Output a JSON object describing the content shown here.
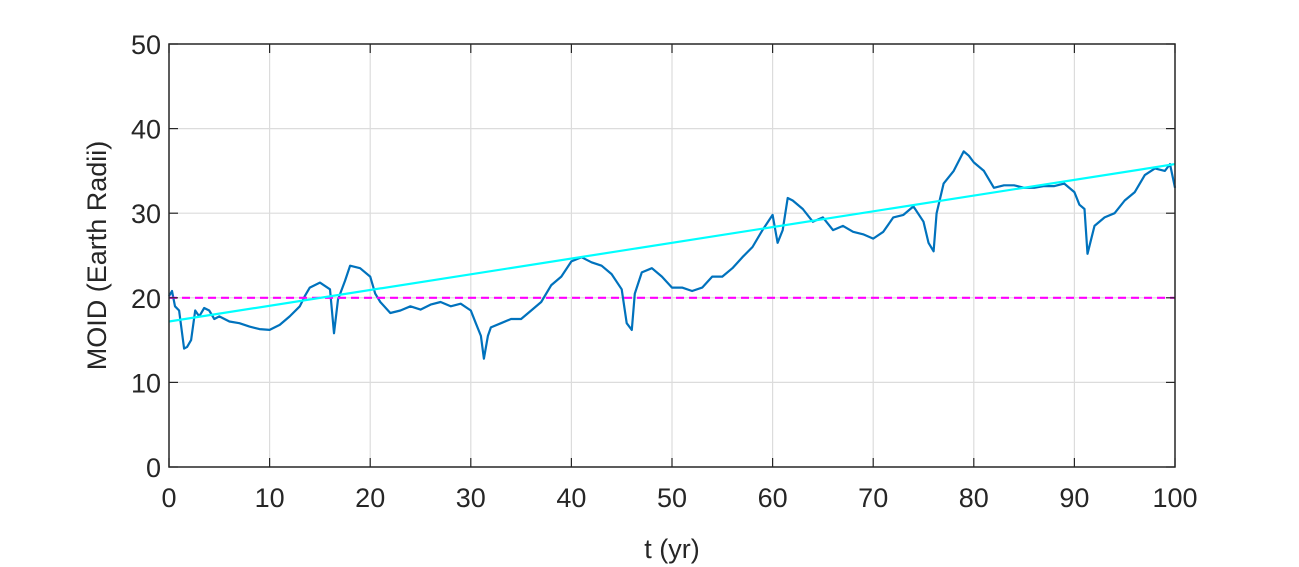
{
  "chart_data": {
    "type": "line",
    "title": "",
    "xlabel": "t (yr)",
    "ylabel": "MOID (Earth Radii)",
    "xlim": [
      0,
      100
    ],
    "ylim": [
      0,
      50
    ],
    "xticks": [
      0,
      10,
      20,
      30,
      40,
      50,
      60,
      70,
      80,
      90,
      100
    ],
    "yticks": [
      0,
      10,
      20,
      30,
      40,
      50
    ],
    "grid": true,
    "legend": "none",
    "colors": {
      "moid": "#0072BD",
      "trend": "#00FFFF",
      "threshold": "#FF00FF",
      "grid": "#DCDCDC",
      "axis": "#262626"
    },
    "series": [
      {
        "style": "solid",
        "x": [
          0,
          0.3,
          0.6,
          1,
          1.5,
          1.8,
          2.2,
          2.6,
          3,
          3.5,
          4,
          4.5,
          5,
          6,
          7,
          8,
          9,
          10,
          11,
          12,
          13,
          13.5,
          14,
          15,
          16,
          16.4,
          16.8,
          17.5,
          18,
          19,
          20,
          20.5,
          21,
          22,
          23,
          24,
          25,
          26,
          27,
          28,
          29,
          30,
          30.5,
          31,
          31.3,
          31.7,
          32,
          33,
          34,
          35,
          36,
          37,
          38,
          39,
          40,
          41,
          42,
          43,
          44,
          45,
          45.5,
          46,
          46.3,
          47,
          48,
          49,
          50,
          51,
          52,
          53,
          54,
          55,
          56,
          57,
          58,
          59,
          60,
          60.5,
          61,
          61.5,
          62,
          63,
          64,
          65,
          66,
          67,
          68,
          69,
          70,
          71,
          72,
          73,
          74,
          75,
          75.5,
          76,
          76.3,
          77,
          78,
          79,
          79.5,
          80,
          81,
          82,
          83,
          84,
          85,
          86,
          87,
          88,
          89,
          90,
          90.5,
          91,
          91.3,
          92,
          93,
          94,
          95,
          96,
          97,
          98,
          99,
          99.5,
          100
        ],
        "y": [
          20.2,
          20.8,
          19,
          18.5,
          14,
          14.2,
          15,
          18.5,
          17.8,
          18.8,
          18.5,
          17.5,
          17.8,
          17.2,
          17,
          16.6,
          16.3,
          16.2,
          16.8,
          17.8,
          19,
          20.2,
          21.2,
          21.8,
          21,
          15.8,
          19.8,
          22,
          23.8,
          23.5,
          22.5,
          20.5,
          19.5,
          18.2,
          18.5,
          19,
          18.6,
          19.2,
          19.5,
          19,
          19.3,
          18.5,
          17,
          15.5,
          12.8,
          15.5,
          16.5,
          17,
          17.5,
          17.5,
          18.5,
          19.5,
          21.5,
          22.5,
          24.3,
          24.8,
          24.2,
          23.8,
          22.8,
          21,
          17,
          16.2,
          20.5,
          23,
          23.5,
          22.5,
          21.2,
          21.2,
          20.8,
          21.2,
          22.5,
          22.5,
          23.5,
          24.8,
          26,
          28,
          29.8,
          26.5,
          28,
          31.8,
          31.5,
          30.5,
          29,
          29.5,
          28,
          28.5,
          27.8,
          27.5,
          27,
          27.8,
          29.5,
          29.8,
          30.8,
          29,
          26.5,
          25.5,
          30,
          33.5,
          35,
          37.3,
          36.8,
          36,
          35,
          33,
          33.3,
          33.3,
          33,
          33,
          33.2,
          33.2,
          33.5,
          32.5,
          31,
          30.5,
          25.2,
          28.5,
          29.5,
          30,
          31.5,
          32.5,
          34.5,
          35.3,
          35,
          35.8,
          33
        ]
      },
      {
        "style": "trend-line",
        "x": [
          0,
          100
        ],
        "y": [
          17.2,
          35.8
        ]
      },
      {
        "style": "dashed",
        "x": [
          0,
          100
        ],
        "y": [
          20,
          20
        ]
      }
    ]
  }
}
